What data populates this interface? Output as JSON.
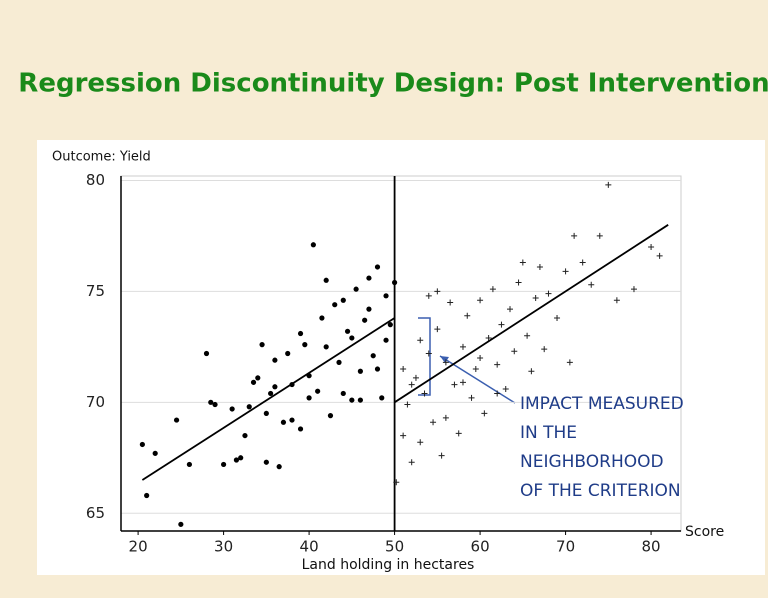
{
  "title": "Regression Discontinuity Design: Post Intervention",
  "chart_data": {
    "type": "scatter",
    "y_label": "Outcome: Yield",
    "x_label": "Score",
    "x_caption": "Land holding in hectares",
    "xlim": [
      18,
      83.5
    ],
    "ylim": [
      64.2,
      80.2
    ],
    "xticks": [
      20,
      30,
      40,
      50,
      60,
      70,
      80
    ],
    "yticks": [
      65,
      70,
      75,
      80
    ],
    "grid": true,
    "cutoff_x": 50,
    "series": [
      {
        "marker": "dot",
        "color": "#000000",
        "x": [
          20.5,
          21,
          22,
          25,
          24.5,
          28,
          28.5,
          29,
          30,
          31,
          32,
          32.5,
          33,
          34,
          35,
          35.5,
          36,
          36.5,
          37,
          38,
          39,
          39.5,
          40,
          40.5,
          41,
          41.5,
          42,
          42.5,
          43,
          43.5,
          44,
          44.5,
          45,
          45.5,
          46,
          46.5,
          47,
          47.5,
          48,
          48.5,
          49,
          49.5,
          50,
          44,
          46,
          38,
          36,
          33.5,
          34.5,
          42,
          47,
          49,
          48,
          45,
          40,
          37.5,
          39,
          31.5,
          26,
          35
        ],
        "values": [
          68.1,
          65.8,
          67.7,
          64.5,
          69.2,
          72.2,
          70,
          69.9,
          67.2,
          69.7,
          67.5,
          68.5,
          69.8,
          71.1,
          67.3,
          70.4,
          71.9,
          67.1,
          69.1,
          70.8,
          73.1,
          72.6,
          71.2,
          77.1,
          70.5,
          73.8,
          72.5,
          69.4,
          74.4,
          71.8,
          70.4,
          73.2,
          72.9,
          75.1,
          71.4,
          73.7,
          75.6,
          72.1,
          76.1,
          70.2,
          74.8,
          73.5,
          75.4,
          74.6,
          70.1,
          69.2,
          70.7,
          70.9,
          72.6,
          75.5,
          74.2,
          72.8,
          71.5,
          70.1,
          70.2,
          72.2,
          68.8,
          67.4,
          67.2,
          69.5
        ]
      },
      {
        "marker": "plus",
        "color": "#222222",
        "x": [
          50.2,
          51,
          51.5,
          52,
          52.5,
          53,
          53.5,
          54,
          54.5,
          55,
          55.5,
          56,
          56.5,
          57,
          57.5,
          58,
          58.5,
          59,
          59.5,
          60,
          60.5,
          61,
          61.5,
          62,
          62.5,
          63,
          63.5,
          64,
          64.5,
          65,
          65.5,
          66,
          66.5,
          67,
          67.5,
          68,
          69,
          70,
          70.5,
          71,
          72,
          73,
          74,
          75,
          76,
          78,
          80,
          81,
          52,
          53,
          56,
          58,
          55,
          51,
          54,
          62,
          60
        ],
        "values": [
          66.4,
          68.5,
          69.9,
          67.3,
          71.1,
          72.8,
          70.4,
          74.8,
          69.1,
          73.3,
          67.6,
          71.8,
          74.5,
          70.8,
          68.6,
          72.5,
          73.9,
          70.2,
          71.5,
          74.6,
          69.5,
          72.9,
          75.1,
          71.7,
          73.5,
          70.6,
          74.2,
          72.3,
          75.4,
          76.3,
          73,
          71.4,
          74.7,
          76.1,
          72.4,
          74.9,
          73.8,
          75.9,
          71.8,
          77.5,
          76.3,
          75.3,
          77.5,
          79.8,
          74.6,
          75.1,
          77,
          76.6,
          70.8,
          68.2,
          69.3,
          70.9,
          75,
          71.5,
          72.2,
          70.4,
          72
        ]
      }
    ],
    "fit_lines": [
      {
        "color": "#000000",
        "x": [
          20.5,
          50
        ],
        "values": [
          66.5,
          73.8
        ]
      },
      {
        "color": "#000000",
        "x": [
          50,
          82
        ],
        "values": [
          70,
          78
        ]
      }
    ],
    "annotation": [
      "IMPACT MEASURED",
      "IN THE",
      "NEIGHBORHOOD",
      "OF THE CRITERION"
    ],
    "annotation_color": "#1f3c88"
  }
}
